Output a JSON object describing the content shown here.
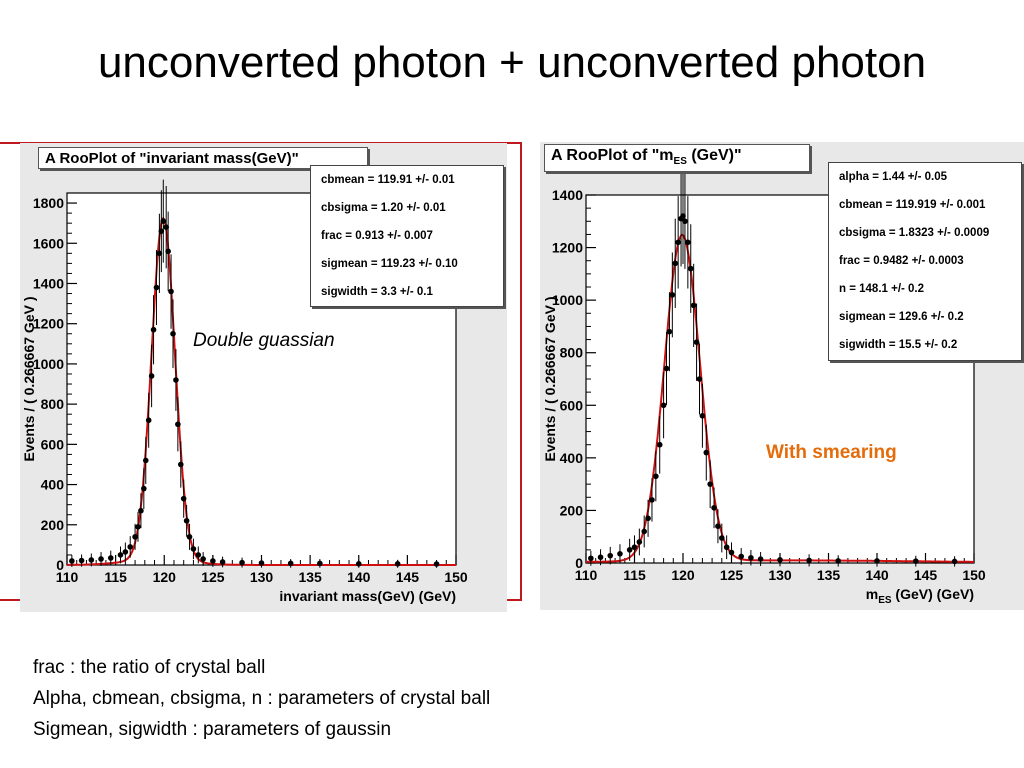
{
  "slide": {
    "title": "unconverted photon + unconverted photon",
    "notes": [
      "frac :  the ratio of crystal ball",
      "Alpha, cbmean, cbsigma, n : parameters of crystal ball",
      "Sigmean, sigwidth : parameters of gaussin"
    ]
  },
  "annotations": {
    "left": "Double guassian",
    "right": "With smearing",
    "right_color": "#e46c0a"
  },
  "colors": {
    "frame": "#c0181f",
    "fit_curve": "#d01010",
    "points": "#000000"
  },
  "chart_data": [
    {
      "type": "scatter",
      "title": "A RooPlot of \"invariant mass(GeV)\"",
      "xlabel": "invariant mass(GeV) (GeV)",
      "ylabel": "Events / ( 0.266667 GeV )",
      "xlim": [
        110,
        150
      ],
      "ylim": [
        0,
        1850
      ],
      "xticks": [
        110,
        115,
        120,
        125,
        130,
        135,
        140,
        145,
        150
      ],
      "yticks": [
        0,
        200,
        400,
        600,
        800,
        1000,
        1200,
        1400,
        1600,
        1800
      ],
      "stats": [
        "cbmean =  119.91 +/- 0.01",
        "cbsigma =  1.20 +/- 0.01",
        "frac =  0.913 +/- 0.007",
        "sigmean =  119.23 +/- 0.10",
        "sigwidth =  3.3 +/- 0.1"
      ],
      "fit": {
        "mean": 119.9,
        "sigma": 1.2,
        "peak": 1700,
        "tail_mean": 119.23,
        "tail_sigma": 3.3,
        "tail_amp": 25
      },
      "series": [
        {
          "x": [
            110.5,
            111.5,
            112.5,
            113.5,
            114.5,
            115.5,
            116.0,
            116.5,
            117.0,
            117.3,
            117.6,
            117.9,
            118.1,
            118.4,
            118.7,
            118.9,
            119.2,
            119.5,
            119.7,
            119.9,
            120.2,
            120.4,
            120.7,
            120.9,
            121.2,
            121.4,
            121.7,
            122.0,
            122.3,
            122.6,
            123.0,
            123.5,
            124.0,
            125.0,
            126.0,
            128.0,
            130.0,
            133.0,
            136.0,
            140.0,
            144.0,
            148.0
          ],
          "y": [
            20,
            22,
            25,
            30,
            35,
            50,
            65,
            90,
            140,
            190,
            270,
            380,
            520,
            720,
            940,
            1170,
            1380,
            1550,
            1660,
            1710,
            1680,
            1560,
            1360,
            1150,
            920,
            700,
            500,
            330,
            220,
            140,
            80,
            50,
            30,
            20,
            15,
            12,
            10,
            8,
            8,
            6,
            6,
            5
          ]
        }
      ]
    },
    {
      "type": "scatter",
      "title": "A RooPlot of \"m",
      "title_sub": "ES",
      "title_tail": " (GeV)\"",
      "xlabel": "m",
      "xlabel_sub": "ES",
      "xlabel_tail": " (GeV) (GeV)",
      "ylabel": "Events / ( 0.266667 GeV )",
      "xlim": [
        110,
        150
      ],
      "ylim": [
        0,
        1400
      ],
      "xticks": [
        110,
        115,
        120,
        125,
        130,
        135,
        140,
        145,
        150
      ],
      "yticks": [
        0,
        200,
        400,
        600,
        800,
        1000,
        1200,
        1400
      ],
      "stats": [
        "alpha =  1.44 +/- 0.05",
        "cbmean =  119.919 +/- 0.001",
        "cbsigma =  1.8323 +/- 0.0009",
        "frac =  0.9482 +/- 0.0003",
        "n =  148.1 +/- 0.2",
        "sigmean =  129.6 +/- 0.2",
        "sigwidth =  15.5 +/- 0.2"
      ],
      "fit": {
        "mean": 119.92,
        "sigma": 1.83,
        "peak": 1240,
        "tail_mean": 129.6,
        "tail_sigma": 15.5,
        "tail_amp": 10
      },
      "series": [
        {
          "x": [
            110.5,
            111.5,
            112.5,
            113.5,
            114.5,
            115.0,
            115.5,
            116.0,
            116.4,
            116.8,
            117.2,
            117.6,
            118.0,
            118.3,
            118.6,
            118.9,
            119.2,
            119.5,
            119.8,
            120.0,
            120.2,
            120.5,
            120.8,
            121.1,
            121.4,
            121.7,
            122.0,
            122.4,
            122.8,
            123.2,
            123.6,
            124.0,
            124.5,
            125.0,
            126.0,
            127.0,
            128.0,
            130.0,
            133.0,
            136.0,
            140.0,
            144.0,
            148.0
          ],
          "y": [
            18,
            22,
            28,
            35,
            50,
            60,
            80,
            120,
            170,
            240,
            330,
            450,
            600,
            740,
            880,
            1020,
            1140,
            1220,
            1310,
            1320,
            1300,
            1220,
            1120,
            980,
            840,
            700,
            560,
            420,
            300,
            210,
            140,
            95,
            60,
            40,
            25,
            20,
            15,
            12,
            10,
            8,
            8,
            7,
            6
          ]
        }
      ]
    }
  ]
}
